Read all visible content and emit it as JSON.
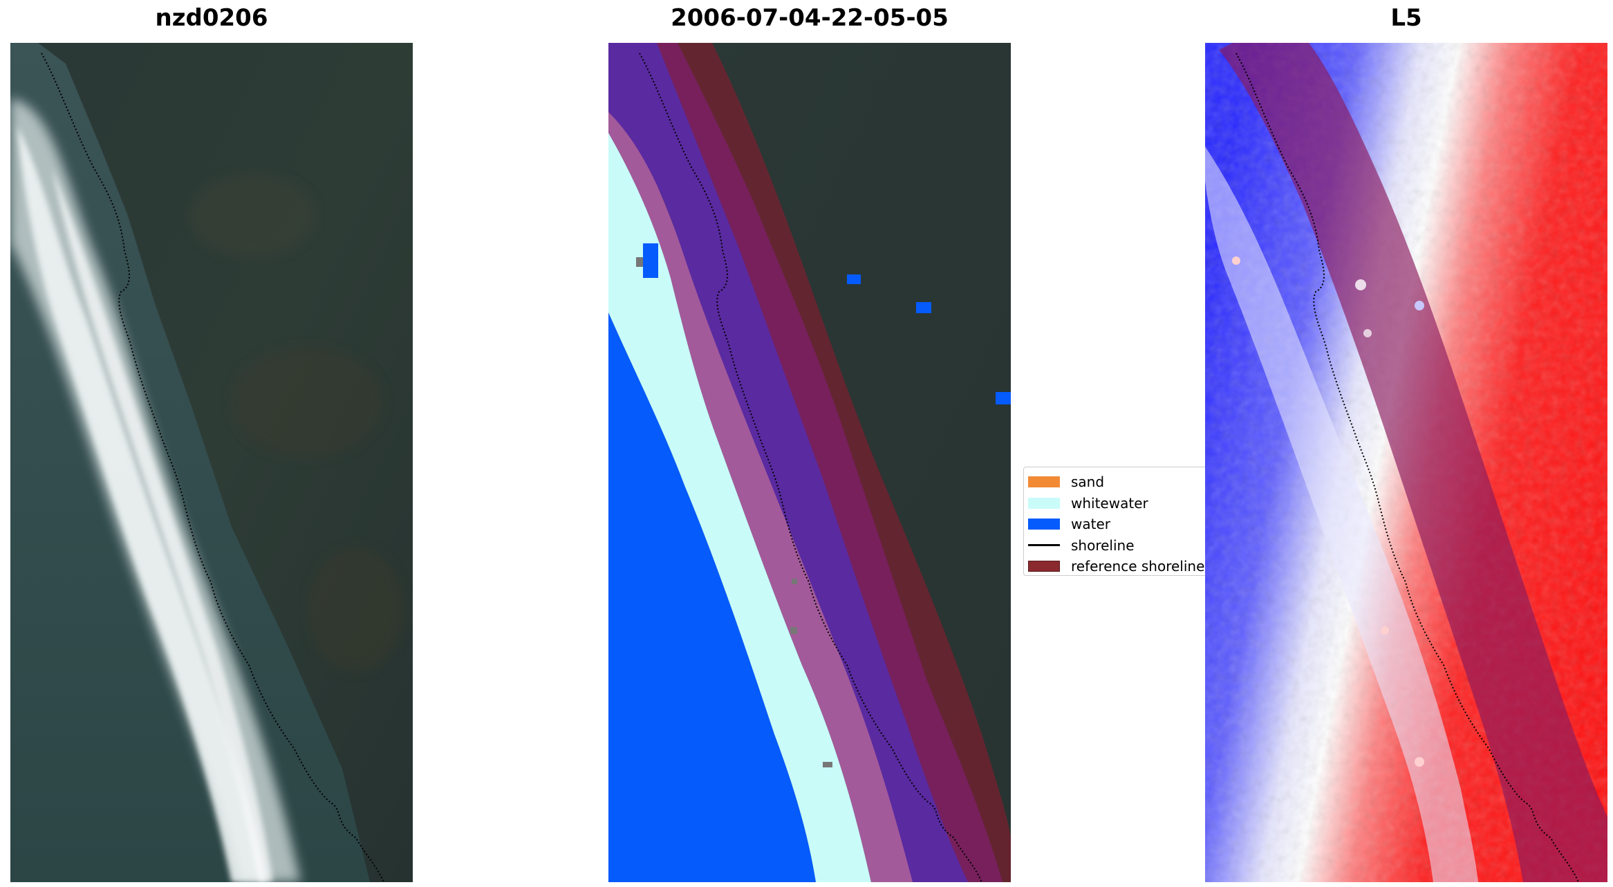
{
  "titles": {
    "left": "nzd0206",
    "middle": "2006-07-04-22-05-05",
    "right": "L5"
  },
  "legend": {
    "items": [
      {
        "label": "sand",
        "color": "#f28a35",
        "kind": "patch"
      },
      {
        "label": "whitewater",
        "color": "#c9fbf9",
        "kind": "patch"
      },
      {
        "label": "water",
        "color": "#055bfc",
        "kind": "patch"
      },
      {
        "label": "shoreline",
        "color": "#000000",
        "kind": "line"
      },
      {
        "label": "reference shoreline",
        "color": "#8b2a2e",
        "kind": "patch"
      }
    ]
  },
  "colors": {
    "land_dark": "#2b3a38",
    "ocean_dark": "#2f4748",
    "whitewater": "#c9fbf9",
    "water": "#055bfc",
    "reference_buffer": "#8b1a2e",
    "index_positive": "#ff2020",
    "index_negative": "#2a2aff"
  }
}
